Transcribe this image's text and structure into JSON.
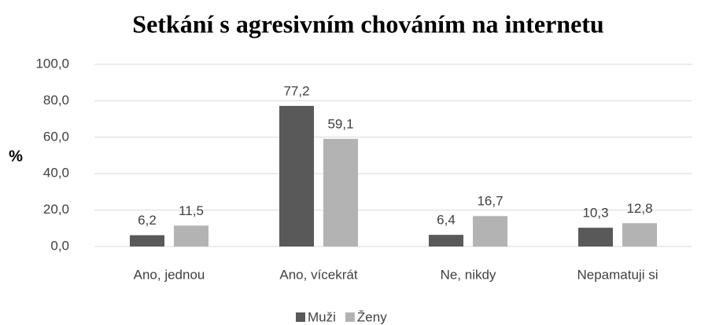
{
  "chart_data": {
    "type": "bar",
    "title": "Setkání s agresivním chováním na internetu",
    "ylabel": "%",
    "categories": [
      "Ano, jednou",
      "Ano, vícekrát",
      "Ne, nikdy",
      "Nepamatuji si"
    ],
    "series": [
      {
        "name": "Muži",
        "color": "#595959",
        "values": [
          6.2,
          77.2,
          6.4,
          10.3
        ],
        "value_labels": [
          "6,2",
          "77,2",
          "6,4",
          "10,3"
        ]
      },
      {
        "name": "Ženy",
        "color": "#b3b3b3",
        "values": [
          11.5,
          59.1,
          16.7,
          12.8
        ],
        "value_labels": [
          "11,5",
          "59,1",
          "16,7",
          "12,8"
        ]
      }
    ],
    "ylim": [
      0,
      100
    ],
    "yticks": [
      {
        "value": 0,
        "label": "0,0"
      },
      {
        "value": 20,
        "label": "20,0"
      },
      {
        "value": 40,
        "label": "40,0"
      },
      {
        "value": 60,
        "label": "60,0"
      },
      {
        "value": 80,
        "label": "80,0"
      },
      {
        "value": 100,
        "label": "100,0"
      }
    ],
    "grid": true,
    "legend": "bottom"
  }
}
